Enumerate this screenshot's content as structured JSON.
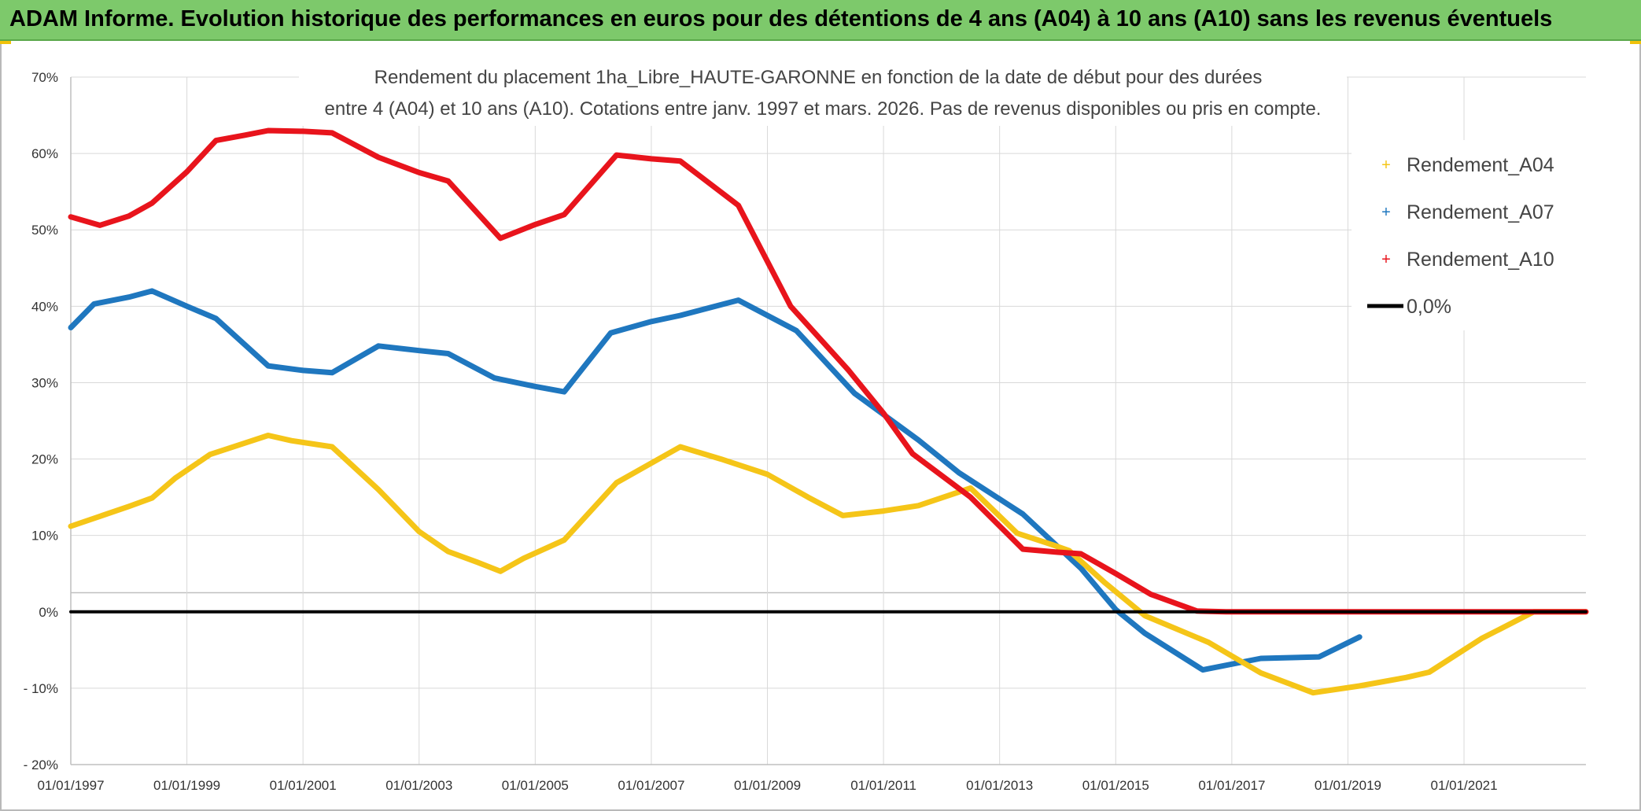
{
  "header": {
    "title": "ADAM Informe. Evolution historique des performances en euros pour des détentions de 4 ans (A04) à 10 ans (A10) sans les revenus éventuels"
  },
  "colors": {
    "banner": "#7dc96b",
    "a04": "#f5c518",
    "a07": "#1f77bf",
    "a10": "#e8141c",
    "zero": "#000000",
    "grid": "#d9d9d9"
  },
  "chart_data": {
    "type": "line",
    "title_line1": "Rendement du placement 1ha_Libre_HAUTE-GARONNE en fonction de la date de début pour des durées",
    "title_line2": "entre 4 (A04) et 10 ans (A10). Cotations entre janv. 1997 et mars. 2026. Pas de revenus disponibles ou pris en compte.",
    "xlabel": "",
    "ylabel": "",
    "xlim": [
      1997.0,
      2023.1
    ],
    "ylim": [
      -20,
      70
    ],
    "y_ticks": [
      {
        "value": 70,
        "label": "70%"
      },
      {
        "value": 60,
        "label": "60%"
      },
      {
        "value": 50,
        "label": "50%"
      },
      {
        "value": 40,
        "label": "40%"
      },
      {
        "value": 30,
        "label": "30%"
      },
      {
        "value": 20,
        "label": "20%"
      },
      {
        "value": 10,
        "label": "10%"
      },
      {
        "value": 0,
        "label": "0%"
      },
      {
        "value": -10,
        "label": "- 10%"
      },
      {
        "value": -20,
        "label": "- 20%"
      }
    ],
    "x_ticks": [
      {
        "value": 1997,
        "label": "01/01/1997"
      },
      {
        "value": 1999,
        "label": "01/01/1999"
      },
      {
        "value": 2001,
        "label": "01/01/2001"
      },
      {
        "value": 2003,
        "label": "01/01/2003"
      },
      {
        "value": 2005,
        "label": "01/01/2005"
      },
      {
        "value": 2007,
        "label": "01/01/2007"
      },
      {
        "value": 2009,
        "label": "01/01/2009"
      },
      {
        "value": 2011,
        "label": "01/01/2011"
      },
      {
        "value": 2013,
        "label": "01/01/2013"
      },
      {
        "value": 2015,
        "label": "01/01/2015"
      },
      {
        "value": 2017,
        "label": "01/01/2017"
      },
      {
        "value": 2019,
        "label": "01/01/2019"
      },
      {
        "value": 2021,
        "label": "01/01/2021"
      }
    ],
    "grid": true,
    "legend_position": "top-right",
    "series": [
      {
        "name": "Rendement_A04",
        "key": "a04",
        "points": [
          [
            1997.0,
            11.2
          ],
          [
            1997.5,
            12.5
          ],
          [
            1998.0,
            13.8
          ],
          [
            1998.4,
            14.9
          ],
          [
            1998.8,
            17.5
          ],
          [
            1999.4,
            20.6
          ],
          [
            2000.0,
            22.1
          ],
          [
            2000.4,
            23.1
          ],
          [
            2000.8,
            22.4
          ],
          [
            2001.5,
            21.6
          ],
          [
            2002.3,
            16.0
          ],
          [
            2003.0,
            10.5
          ],
          [
            2003.5,
            7.9
          ],
          [
            2004.0,
            6.5
          ],
          [
            2004.4,
            5.3
          ],
          [
            2004.8,
            7.0
          ],
          [
            2005.5,
            9.4
          ],
          [
            2006.4,
            16.9
          ],
          [
            2007.5,
            21.6
          ],
          [
            2008.2,
            20.0
          ],
          [
            2009.0,
            18.0
          ],
          [
            2009.7,
            15.0
          ],
          [
            2010.3,
            12.6
          ],
          [
            2011.0,
            13.2
          ],
          [
            2011.6,
            13.9
          ],
          [
            2012.5,
            16.2
          ],
          [
            2013.3,
            10.3
          ],
          [
            2013.9,
            8.8
          ],
          [
            2014.2,
            8.0
          ],
          [
            2014.8,
            3.9
          ],
          [
            2015.5,
            -0.5
          ],
          [
            2016.6,
            -4.0
          ],
          [
            2017.5,
            -8.0
          ],
          [
            2018.4,
            -10.6
          ],
          [
            2019.2,
            -9.7
          ],
          [
            2020.0,
            -8.6
          ],
          [
            2020.4,
            -7.9
          ],
          [
            2021.3,
            -3.5
          ],
          [
            2022.2,
            0.0
          ],
          [
            2023.1,
            0.0
          ]
        ]
      },
      {
        "name": "Rendement_A07",
        "key": "a07",
        "points": [
          [
            1997.0,
            37.2
          ],
          [
            1997.4,
            40.3
          ],
          [
            1998.0,
            41.2
          ],
          [
            1998.4,
            42.0
          ],
          [
            1999.0,
            40.0
          ],
          [
            1999.5,
            38.4
          ],
          [
            2000.4,
            32.2
          ],
          [
            2001.0,
            31.6
          ],
          [
            2001.5,
            31.3
          ],
          [
            2002.3,
            34.8
          ],
          [
            2003.0,
            34.2
          ],
          [
            2003.5,
            33.8
          ],
          [
            2004.3,
            30.6
          ],
          [
            2005.0,
            29.5
          ],
          [
            2005.5,
            28.8
          ],
          [
            2006.3,
            36.5
          ],
          [
            2007.0,
            38.0
          ],
          [
            2007.5,
            38.8
          ],
          [
            2008.5,
            40.8
          ],
          [
            2009.5,
            36.8
          ],
          [
            2010.5,
            28.6
          ],
          [
            2011.6,
            22.5
          ],
          [
            2012.3,
            18.2
          ],
          [
            2013.4,
            12.8
          ],
          [
            2014.4,
            5.7
          ],
          [
            2015.0,
            0.3
          ],
          [
            2015.5,
            -2.8
          ],
          [
            2016.5,
            -7.6
          ],
          [
            2017.5,
            -6.1
          ],
          [
            2018.5,
            -5.9
          ],
          [
            2019.2,
            -3.3
          ]
        ]
      },
      {
        "name": "Rendement_A10",
        "key": "a10",
        "points": [
          [
            1997.0,
            51.7
          ],
          [
            1997.5,
            50.6
          ],
          [
            1998.0,
            51.8
          ],
          [
            1998.4,
            53.5
          ],
          [
            1999.0,
            57.6
          ],
          [
            1999.5,
            61.7
          ],
          [
            2000.0,
            62.4
          ],
          [
            2000.4,
            63.0
          ],
          [
            2001.0,
            62.9
          ],
          [
            2001.5,
            62.7
          ],
          [
            2002.3,
            59.5
          ],
          [
            2003.0,
            57.5
          ],
          [
            2003.5,
            56.4
          ],
          [
            2004.4,
            48.9
          ],
          [
            2005.0,
            50.7
          ],
          [
            2005.5,
            52.0
          ],
          [
            2006.4,
            59.8
          ],
          [
            2007.0,
            59.3
          ],
          [
            2007.5,
            59.0
          ],
          [
            2008.5,
            53.2
          ],
          [
            2009.4,
            40.0
          ],
          [
            2010.4,
            31.6
          ],
          [
            2011.0,
            26.0
          ],
          [
            2011.5,
            20.7
          ],
          [
            2012.5,
            15.0
          ],
          [
            2013.4,
            8.2
          ],
          [
            2014.0,
            7.8
          ],
          [
            2014.4,
            7.6
          ],
          [
            2015.0,
            5.0
          ],
          [
            2015.6,
            2.3
          ],
          [
            2016.4,
            0.1
          ],
          [
            2016.9,
            0.0
          ],
          [
            2023.1,
            0.0
          ]
        ]
      },
      {
        "name": "0,0%",
        "key": "zero",
        "points": [
          [
            1997.0,
            0.0
          ],
          [
            2023.1,
            0.0
          ]
        ]
      }
    ]
  }
}
